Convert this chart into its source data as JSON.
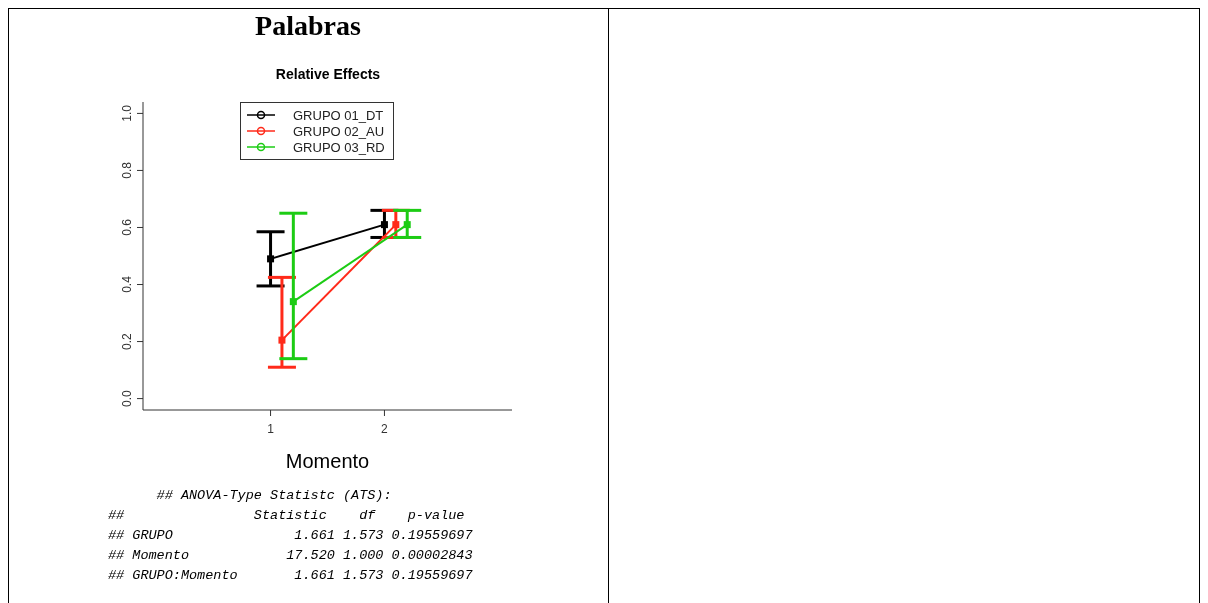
{
  "chart_data": {
    "type": "line",
    "title": "Palabras",
    "subtitle": "Relative Effects",
    "xlabel": "Momento",
    "xlim": [
      -0.12,
      3.12
    ],
    "xticks": [
      1,
      2
    ],
    "ylim": [
      -0.04,
      1.04
    ],
    "yticks": [
      {
        "value": 0,
        "label": "0.0"
      },
      0.2,
      0.4,
      0.6,
      0.8,
      {
        "value": 1,
        "label": "1.0"
      }
    ],
    "marker": "square",
    "line_style": "solid",
    "grid": false,
    "legend": "top",
    "series": [
      {
        "name": "GRUPO 01_DT",
        "color": "#000000",
        "x": [
          1,
          2
        ],
        "values": [
          0.49,
          0.61
        ],
        "errors": [
          [
            0.395,
            0.585
          ],
          [
            0.565,
            0.66
          ]
        ]
      },
      {
        "name": "GRUPO 02_AU",
        "color": "#ff2a1a",
        "x": [
          1.1,
          2.1
        ],
        "values": [
          0.205,
          0.61
        ],
        "errors": [
          [
            0.11,
            0.425
          ],
          [
            0.565,
            0.66
          ]
        ]
      },
      {
        "name": "GRUPO 03_RD",
        "color": "#1ccc14",
        "x": [
          1.2,
          2.2
        ],
        "values": [
          0.34,
          0.61
        ],
        "errors": [
          [
            0.14,
            0.65
          ],
          [
            0.565,
            0.66
          ]
        ]
      }
    ],
    "annotations": [
      "## ANOVA-Type Statistc (ATS):",
      "##                Statistic    df    p-value",
      "## GRUPO               1.661 1.573 0.19559697",
      "## Momento            17.520 1.000 0.00002843",
      "## GRUPO:Momento       1.661 1.573 0.19559697"
    ]
  }
}
